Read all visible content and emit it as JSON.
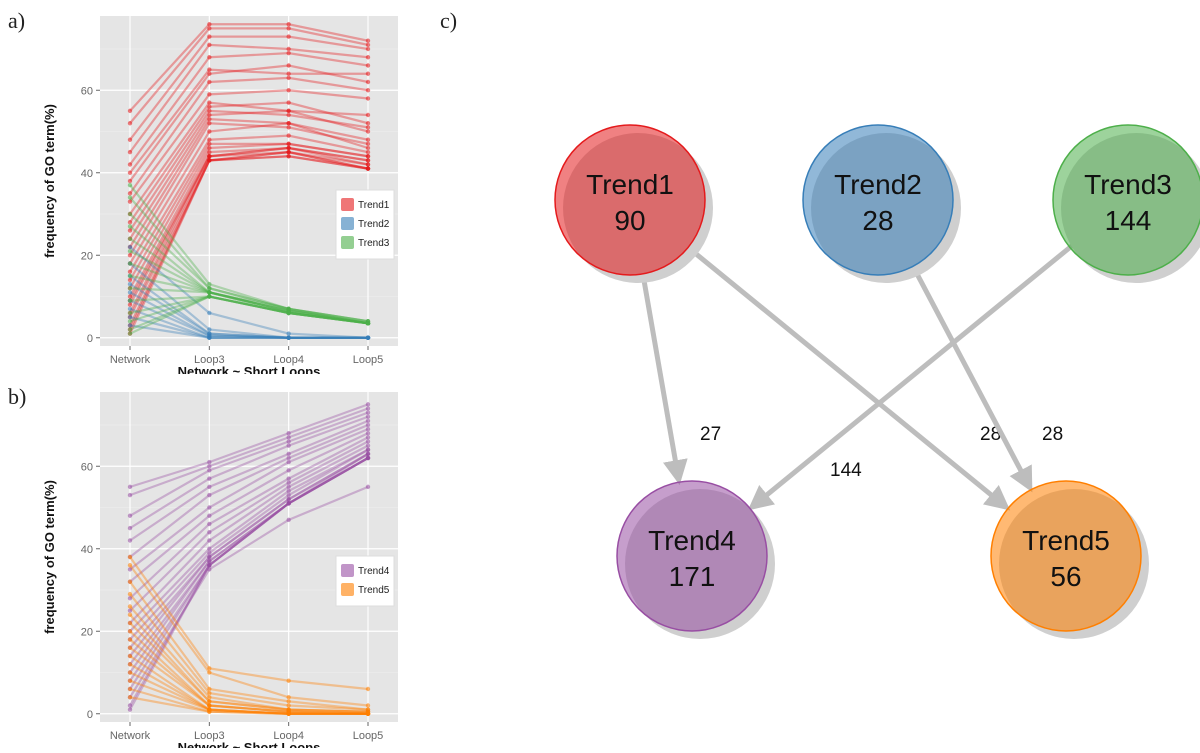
{
  "panels": {
    "a": "a)",
    "b": "b)",
    "c": "c)"
  },
  "colors": {
    "Trend1": "#e41a1c",
    "Trend2": "#377eb8",
    "Trend3": "#4daf4a",
    "Trend4": "#984ea3",
    "Trend5": "#ff7f00",
    "panel_bg": "#e5e5e5",
    "edge": "#bdbdbd"
  },
  "chart_data": [
    {
      "type": "line",
      "panel": "a",
      "xlabel": "Network ~ Short Loops",
      "ylabel": "frequency of GO term(%)",
      "x": [
        "Network",
        "Loop3",
        "Loop4",
        "Loop5"
      ],
      "ylim": [
        -2,
        78
      ],
      "yticks": [
        0,
        20,
        40,
        60
      ],
      "grid": true,
      "legend_position": "right",
      "legend": [
        "Trend1",
        "Trend2",
        "Trend3"
      ],
      "series": [
        {
          "name": "Trend1",
          "lines": [
            [
              55,
              76,
              76,
              72
            ],
            [
              52,
              75,
              75,
              71
            ],
            [
              48,
              73,
              73,
              70
            ],
            [
              45,
              71,
              70,
              68
            ],
            [
              42,
              68,
              69,
              66
            ],
            [
              40,
              65,
              64,
              64
            ],
            [
              38,
              64,
              66,
              62
            ],
            [
              35,
              62,
              63,
              60
            ],
            [
              33,
              59,
              60,
              58
            ],
            [
              30,
              57,
              55,
              54
            ],
            [
              28,
              56,
              57,
              52
            ],
            [
              26,
              55,
              54,
              51
            ],
            [
              24,
              54,
              55,
              50
            ],
            [
              22,
              53,
              52,
              48
            ],
            [
              20,
              52,
              51,
              47
            ],
            [
              18,
              50,
              52,
              46
            ],
            [
              16,
              48,
              49,
              45
            ],
            [
              14,
              47,
              47,
              44
            ],
            [
              12,
              46,
              47,
              44
            ],
            [
              10,
              45,
              46,
              43
            ],
            [
              9,
              44,
              46,
              43
            ],
            [
              8,
              44,
              46,
              42
            ],
            [
              6,
              44,
              45,
              42
            ],
            [
              5,
              43,
              45,
              41
            ],
            [
              3,
              43,
              45,
              41
            ],
            [
              2,
              43,
              44,
              41
            ],
            [
              1,
              43,
              44,
              41
            ]
          ]
        },
        {
          "name": "Trend2",
          "lines": [
            [
              22,
              6,
              1,
              0
            ],
            [
              18,
              2,
              0,
              0
            ],
            [
              15,
              1,
              0,
              0
            ],
            [
              13,
              1,
              0,
              0
            ],
            [
              11,
              0.5,
              0,
              0
            ],
            [
              9,
              0.5,
              0,
              0
            ],
            [
              7,
              0,
              0,
              0
            ],
            [
              5,
              0,
              0,
              0
            ],
            [
              3,
              0,
              0,
              0
            ]
          ]
        },
        {
          "name": "Trend3",
          "lines": [
            [
              37,
              13,
              7,
              4
            ],
            [
              34,
              12,
              7,
              4
            ],
            [
              30,
              12,
              7,
              4
            ],
            [
              27,
              11,
              7,
              3.5
            ],
            [
              24,
              11,
              6.5,
              3.5
            ],
            [
              21,
              11,
              6.5,
              3.5
            ],
            [
              18,
              11,
              6.5,
              3.5
            ],
            [
              15,
              11,
              6.5,
              3.5
            ],
            [
              12,
              11,
              6,
              3.5
            ],
            [
              9,
              10,
              6,
              3.5
            ],
            [
              6,
              10,
              6,
              3.5
            ],
            [
              4,
              10,
              6,
              3.5
            ],
            [
              2,
              10,
              6,
              3.5
            ],
            [
              1,
              10,
              6,
              3.5
            ]
          ]
        }
      ]
    },
    {
      "type": "line",
      "panel": "b",
      "xlabel": "Network ~ Short Loops",
      "ylabel": "frequency of GO term(%)",
      "x": [
        "Network",
        "Loop3",
        "Loop4",
        "Loop5"
      ],
      "ylim": [
        -2,
        78
      ],
      "yticks": [
        0,
        20,
        40,
        60
      ],
      "grid": true,
      "legend_position": "right",
      "legend": [
        "Trend4",
        "Trend5"
      ],
      "series": [
        {
          "name": "Trend4",
          "lines": [
            [
              55,
              61,
              68,
              75
            ],
            [
              53,
              60,
              67,
              74
            ],
            [
              48,
              59,
              66,
              73
            ],
            [
              45,
              57,
              65,
              72
            ],
            [
              42,
              55,
              63,
              71
            ],
            [
              38,
              53,
              62,
              70
            ],
            [
              35,
              50,
              61,
              69
            ],
            [
              32,
              48,
              59,
              68
            ],
            [
              28,
              46,
              57,
              67
            ],
            [
              25,
              44,
              56,
              66
            ],
            [
              22,
              42,
              55,
              65
            ],
            [
              20,
              40,
              54,
              64
            ],
            [
              18,
              39,
              53,
              64
            ],
            [
              16,
              38,
              52,
              63
            ],
            [
              14,
              38,
              52,
              63
            ],
            [
              12,
              37,
              51,
              63
            ],
            [
              10,
              37,
              51,
              62
            ],
            [
              8,
              36,
              51,
              62
            ],
            [
              6,
              36,
              51,
              62
            ],
            [
              4,
              35,
              47,
              55
            ],
            [
              2,
              36,
              51,
              62
            ],
            [
              1,
              36,
              51,
              62
            ]
          ]
        },
        {
          "name": "Trend5",
          "lines": [
            [
              38,
              11,
              8,
              6
            ],
            [
              36,
              10,
              4,
              2
            ],
            [
              32,
              6,
              3,
              1
            ],
            [
              29,
              5,
              2,
              1
            ],
            [
              26,
              4,
              1,
              0.5
            ],
            [
              24,
              3,
              1,
              0.5
            ],
            [
              22,
              3,
              1,
              0.5
            ],
            [
              20,
              2,
              0.5,
              0
            ],
            [
              18,
              2,
              0.5,
              0
            ],
            [
              16,
              2,
              0.5,
              0
            ],
            [
              14,
              1,
              0,
              0
            ],
            [
              12,
              1,
              0,
              0
            ],
            [
              10,
              1,
              0,
              0
            ],
            [
              8,
              1,
              0,
              0
            ],
            [
              6,
              0.5,
              0,
              0
            ],
            [
              4,
              0.5,
              0,
              0
            ]
          ]
        }
      ]
    }
  ],
  "network": {
    "nodes": [
      {
        "id": "Trend1",
        "name": "Trend1",
        "count": "90"
      },
      {
        "id": "Trend2",
        "name": "Trend2",
        "count": "28"
      },
      {
        "id": "Trend3",
        "name": "Trend3",
        "count": "144"
      },
      {
        "id": "Trend4",
        "name": "Trend4",
        "count": "171"
      },
      {
        "id": "Trend5",
        "name": "Trend5",
        "count": "56"
      }
    ],
    "edges": [
      {
        "from": "Trend1",
        "to": "Trend4",
        "label": "27"
      },
      {
        "from": "Trend1",
        "to": "Trend5",
        "label": "28"
      },
      {
        "from": "Trend2",
        "to": "Trend5",
        "label": "28"
      },
      {
        "from": "Trend3",
        "to": "Trend4",
        "label": "144"
      }
    ]
  }
}
